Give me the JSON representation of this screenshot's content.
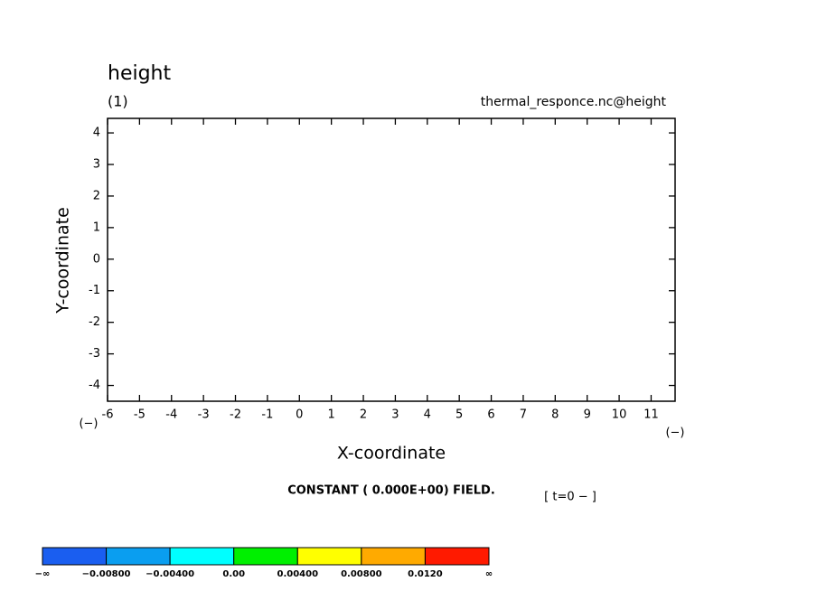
{
  "chart_data": {
    "type": "empty",
    "title": "height",
    "subtitle": "(1)",
    "source_label": "thermal_responce.nc@height",
    "xlabel": "X-coordinate",
    "ylabel": "Y-coordinate",
    "x_unit": "(−)",
    "x_unit_right": "(−)",
    "xlim": [
      -6,
      11.75
    ],
    "ylim": [
      -4.5,
      4.46
    ],
    "xticks": [
      -6,
      -5,
      -4,
      -3,
      -2,
      -1,
      0,
      1,
      2,
      3,
      4,
      5,
      6,
      7,
      8,
      9,
      10,
      11
    ],
    "yticks": [
      -4,
      -3,
      -2,
      -1,
      0,
      1,
      2,
      3,
      4
    ],
    "message": "CONSTANT ( 0.000E+00) FIELD.",
    "time_label": "[ t=0 − ]",
    "colorbar": {
      "colors": [
        "#1a5ef0",
        "#0a9ef0",
        "#00ffff",
        "#00f000",
        "#ffff00",
        "#ffaa00",
        "#ff1a00"
      ],
      "labels": [
        "−∞",
        "−0.00800",
        "−0.00400",
        "0.00",
        "0.00400",
        "0.00800",
        "0.0120",
        "∞"
      ]
    }
  }
}
